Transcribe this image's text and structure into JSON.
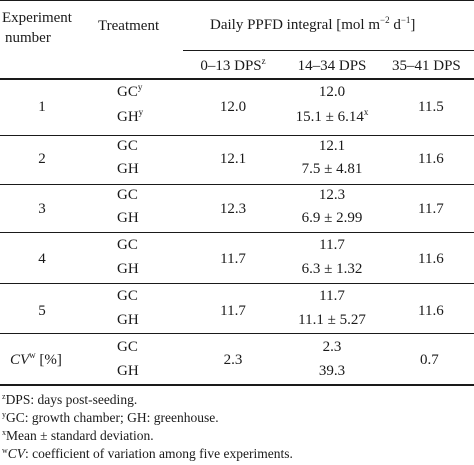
{
  "headers": {
    "experiment": [
      "Experiment",
      "number"
    ],
    "treatment": "Treatment",
    "ppfd_prefix": "Daily PPFD integral [mol m",
    "ppfd_exp1": "−2",
    "ppfd_mid": " d",
    "ppfd_exp2": "−1",
    "ppfd_suffix": "]",
    "col1": "0–13 DPS",
    "col1_sup": "z",
    "col2": "14–34 DPS",
    "col3": "35–41 DPS"
  },
  "rows": [
    {
      "exp": "1",
      "gc": "GC",
      "gc_sup": "y",
      "gh": "GH",
      "gh_sup": "y",
      "c1": "12.0",
      "c2a": "12.0",
      "c2b": "15.1 ± 6.14",
      "c2b_sup": "x",
      "c3": "11.5"
    },
    {
      "exp": "2",
      "gc": "GC",
      "gh": "GH",
      "c1": "12.1",
      "c2a": "12.1",
      "c2b": "7.5 ± 4.81",
      "c3": "11.6"
    },
    {
      "exp": "3",
      "gc": "GC",
      "gh": "GH",
      "c1": "12.3",
      "c2a": "12.3",
      "c2b": "6.9 ± 2.99",
      "c3": "11.7"
    },
    {
      "exp": "4",
      "gc": "GC",
      "gh": "GH",
      "c1": "11.7",
      "c2a": "11.7",
      "c2b": "6.3 ± 1.32",
      "c3": "11.6"
    },
    {
      "exp": "5",
      "gc": "GC",
      "gh": "GH",
      "c1": "11.7",
      "c2a": "11.7",
      "c2b": "11.1 ± 5.27",
      "c3": "11.6"
    }
  ],
  "cv_row": {
    "label": "CV",
    "label_sup": "w",
    "unit": " [%]",
    "gc": "GC",
    "gh": "GH",
    "c1": "2.3",
    "c2a": "2.3",
    "c2b": "39.3",
    "c3": "0.7"
  },
  "footnotes": [
    {
      "sup": "z",
      "text": "DPS: days post-seeding."
    },
    {
      "sup": "y",
      "text": "GC: growth chamber; GH: greenhouse."
    },
    {
      "sup": "x",
      "text": "Mean ± standard deviation."
    },
    {
      "sup": "w",
      "em": "CV",
      "text": ": coefficient of variation among five experiments."
    }
  ]
}
